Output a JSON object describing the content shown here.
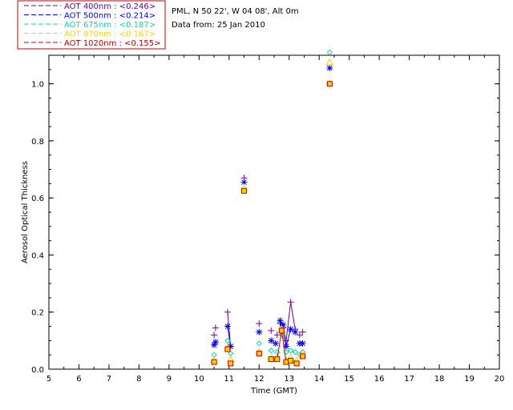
{
  "header": {
    "line1": "PML, N 50 22', W 04 08', Alt 0m",
    "line2": "Data from: 25 Jan 2010"
  },
  "colors": {
    "aot400": "#800080",
    "aot500": "#0000ff",
    "aot675": "#00e0a0",
    "aot870": "#ffd000",
    "aot1020": "#c00000",
    "legend_border": "#c00000"
  },
  "chart_data": {
    "type": "scatter",
    "title": "",
    "xlabel": "Time (GMT)",
    "ylabel": "Aerosol Optical Thickness",
    "xlim": [
      5,
      20
    ],
    "ylim": [
      0,
      1.1
    ],
    "x_ticks": [
      "5",
      "6",
      "7",
      "8",
      "9",
      "10",
      "11",
      "12",
      "13",
      "14",
      "15",
      "16",
      "17",
      "18",
      "19",
      "20"
    ],
    "y_ticks": [
      "0.0",
      "0.2",
      "0.4",
      "0.6",
      "0.8",
      "1.0"
    ],
    "grid": false,
    "legend_position": "top-left",
    "series": [
      {
        "name": "AOT 400nm : <0.246>",
        "marker": "plus",
        "points": [
          [
            10.5,
            0.12
          ],
          [
            10.55,
            0.145
          ],
          [
            10.95,
            0.2
          ],
          [
            11.05,
            0.08
          ],
          [
            11.5,
            0.67
          ],
          [
            12.0,
            0.16
          ],
          [
            12.4,
            0.135
          ],
          [
            12.6,
            0.12
          ],
          [
            12.7,
            0.16
          ],
          [
            12.8,
            0.145
          ],
          [
            12.9,
            0.1
          ],
          [
            13.05,
            0.235
          ],
          [
            13.2,
            0.14
          ],
          [
            13.35,
            0.12
          ],
          [
            13.45,
            0.13
          ],
          [
            14.35,
            1.0
          ]
        ],
        "lines": [
          [
            [
              10.95,
              0.2
            ],
            [
              11.05,
              0.08
            ]
          ],
          [
            [
              12.8,
              0.145
            ],
            [
              12.9,
              0.1
            ],
            [
              13.05,
              0.235
            ],
            [
              13.2,
              0.14
            ]
          ]
        ]
      },
      {
        "name": "AOT 500nm : <0.214>",
        "marker": "asterisk",
        "points": [
          [
            10.5,
            0.085
          ],
          [
            10.55,
            0.095
          ],
          [
            10.95,
            0.15
          ],
          [
            11.05,
            0.08
          ],
          [
            11.5,
            0.655
          ],
          [
            12.0,
            0.13
          ],
          [
            12.4,
            0.1
          ],
          [
            12.55,
            0.09
          ],
          [
            12.7,
            0.17
          ],
          [
            12.8,
            0.155
          ],
          [
            12.9,
            0.08
          ],
          [
            13.05,
            0.14
          ],
          [
            13.2,
            0.13
          ],
          [
            13.35,
            0.09
          ],
          [
            13.45,
            0.09
          ],
          [
            14.35,
            1.055
          ]
        ],
        "lines": [
          [
            [
              10.95,
              0.15
            ],
            [
              11.05,
              0.08
            ]
          ],
          [
            [
              12.7,
              0.17
            ],
            [
              12.9,
              0.08
            ],
            [
              13.05,
              0.14
            ]
          ]
        ]
      },
      {
        "name": "AOT 675nm : <0.187>",
        "marker": "diamond",
        "points": [
          [
            10.5,
            0.05
          ],
          [
            10.95,
            0.1
          ],
          [
            11.05,
            0.055
          ],
          [
            12.0,
            0.09
          ],
          [
            12.4,
            0.065
          ],
          [
            12.6,
            0.06
          ],
          [
            12.75,
            0.12
          ],
          [
            12.9,
            0.06
          ],
          [
            13.05,
            0.065
          ],
          [
            13.2,
            0.06
          ],
          [
            13.35,
            0.05
          ],
          [
            13.45,
            0.06
          ],
          [
            14.35,
            1.11
          ]
        ],
        "lines": []
      },
      {
        "name": "AOT 870nm : <0.167>",
        "marker": "triangle",
        "points": [
          [
            10.5,
            0.03
          ],
          [
            10.95,
            0.075
          ],
          [
            11.05,
            0.035
          ],
          [
            11.5,
            0.635
          ],
          [
            12.0,
            0.06
          ],
          [
            12.4,
            0.04
          ],
          [
            12.6,
            0.04
          ],
          [
            12.75,
            0.14
          ],
          [
            12.9,
            0.03
          ],
          [
            13.05,
            0.04
          ],
          [
            13.25,
            0.03
          ],
          [
            13.45,
            0.05
          ],
          [
            14.35,
            1.075
          ]
        ],
        "lines": []
      },
      {
        "name": "AOT 1020nm : <0.155>",
        "marker": "square",
        "points": [
          [
            10.5,
            0.025
          ],
          [
            10.95,
            0.07
          ],
          [
            11.05,
            0.02
          ],
          [
            11.5,
            0.625
          ],
          [
            12.0,
            0.055
          ],
          [
            12.4,
            0.035
          ],
          [
            12.6,
            0.035
          ],
          [
            12.75,
            0.135
          ],
          [
            12.9,
            0.025
          ],
          [
            13.05,
            0.03
          ],
          [
            13.25,
            0.02
          ],
          [
            13.45,
            0.045
          ],
          [
            14.35,
            1.0
          ]
        ],
        "lines": [
          [
            [
              12.6,
              0.035
            ],
            [
              12.75,
              0.135
            ],
            [
              12.9,
              0.025
            ]
          ]
        ]
      }
    ]
  }
}
